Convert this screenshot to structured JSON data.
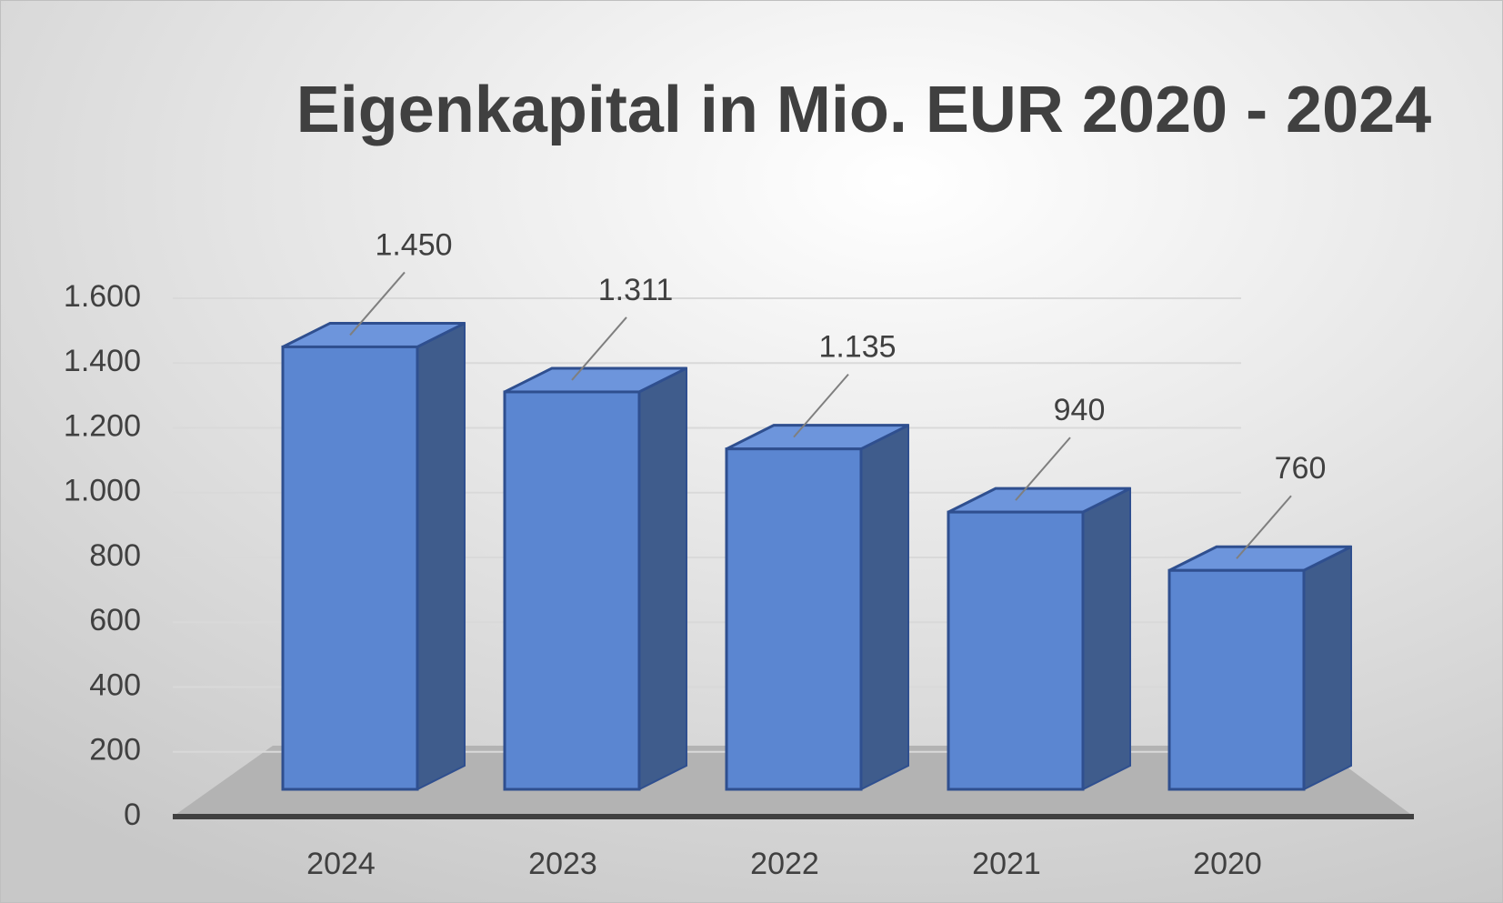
{
  "chart_data": {
    "type": "bar",
    "title": "Eigenkapital in Mio. EUR 2020 - 2024",
    "categories": [
      "2024",
      "2023",
      "2022",
      "2021",
      "2020"
    ],
    "values": [
      1450,
      1311,
      1135,
      940,
      760
    ],
    "value_labels": [
      "1.450",
      "1.311",
      "1.135",
      "940",
      "760"
    ],
    "color": "#5b86d1",
    "ylim": [
      0,
      1600
    ],
    "yticks": [
      0,
      200,
      400,
      600,
      800,
      {
        "value": 1000,
        "label": "1.000"
      },
      {
        "value": 1200,
        "label": "1.200"
      },
      {
        "value": 1400,
        "label": "1.400"
      },
      {
        "value": 1600,
        "label": "1.600"
      }
    ],
    "grid": true
  }
}
